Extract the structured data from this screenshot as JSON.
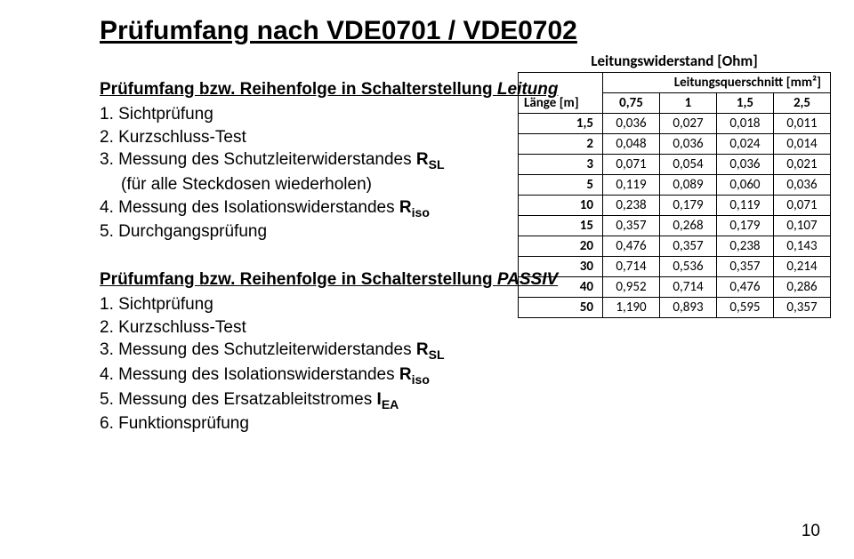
{
  "title": "Prüfumfang nach VDE0701 / VDE0702",
  "section1": {
    "heading_prefix": "Prüfumfang bzw. Reihenfolge in Schalterstellung ",
    "heading_italic": "Leitung",
    "items": [
      {
        "n": "1.",
        "text": "Sichtprüfung"
      },
      {
        "n": "2.",
        "text": "Kurzschluss-Test"
      },
      {
        "n": "3.",
        "prefix": "Messung des Schutzleiterwiderstandes ",
        "sym": "R",
        "sub": "SL"
      },
      {
        "indent": true,
        "text": "(für alle Steckdosen wiederholen)"
      },
      {
        "n": "4.",
        "prefix": "Messung des Isolationswiderstandes ",
        "sym": "R",
        "sub": "iso"
      },
      {
        "n": "5.",
        "text": "Durchgangsprüfung"
      }
    ]
  },
  "section2": {
    "heading_prefix": "Prüfumfang bzw. Reihenfolge in Schalterstellung ",
    "heading_italic": "PASSIV",
    "items": [
      {
        "n": "1.",
        "text": "Sichtprüfung"
      },
      {
        "n": "2.",
        "text": "Kurzschluss-Test"
      },
      {
        "n": "3.",
        "prefix": "Messung des Schutzleiterwiderstandes ",
        "sym": "R",
        "sub": "SL"
      },
      {
        "n": "4.",
        "prefix": "Messung des Isolationswiderstandes ",
        "sym": "R",
        "sub": "iso"
      },
      {
        "n": "5.",
        "prefix": "Messung des Ersatzableitstromes ",
        "sym": "I",
        "sub": "EA"
      },
      {
        "n": "6.",
        "text": "Funktionsprüfung"
      }
    ]
  },
  "table": {
    "title": "Leitungswiderstand [Ohm]",
    "sub": "Leitungsquerschnitt [mm²]",
    "rowhead": "Länge [m]",
    "cols": [
      "0,75",
      "1",
      "1,5",
      "2,5"
    ],
    "rows": [
      {
        "h": "1,5",
        "v": [
          "0,036",
          "0,027",
          "0,018",
          "0,011"
        ]
      },
      {
        "h": "2",
        "v": [
          "0,048",
          "0,036",
          "0,024",
          "0,014"
        ]
      },
      {
        "h": "3",
        "v": [
          "0,071",
          "0,054",
          "0,036",
          "0,021"
        ]
      },
      {
        "h": "5",
        "v": [
          "0,119",
          "0,089",
          "0,060",
          "0,036"
        ]
      },
      {
        "h": "10",
        "v": [
          "0,238",
          "0,179",
          "0,119",
          "0,071"
        ]
      },
      {
        "h": "15",
        "v": [
          "0,357",
          "0,268",
          "0,179",
          "0,107"
        ]
      },
      {
        "h": "20",
        "v": [
          "0,476",
          "0,357",
          "0,238",
          "0,143"
        ]
      },
      {
        "h": "30",
        "v": [
          "0,714",
          "0,536",
          "0,357",
          "0,214"
        ]
      },
      {
        "h": "40",
        "v": [
          "0,952",
          "0,714",
          "0,476",
          "0,286"
        ]
      },
      {
        "h": "50",
        "v": [
          "1,190",
          "0,893",
          "0,595",
          "0,357"
        ]
      }
    ]
  },
  "page_number": "10"
}
